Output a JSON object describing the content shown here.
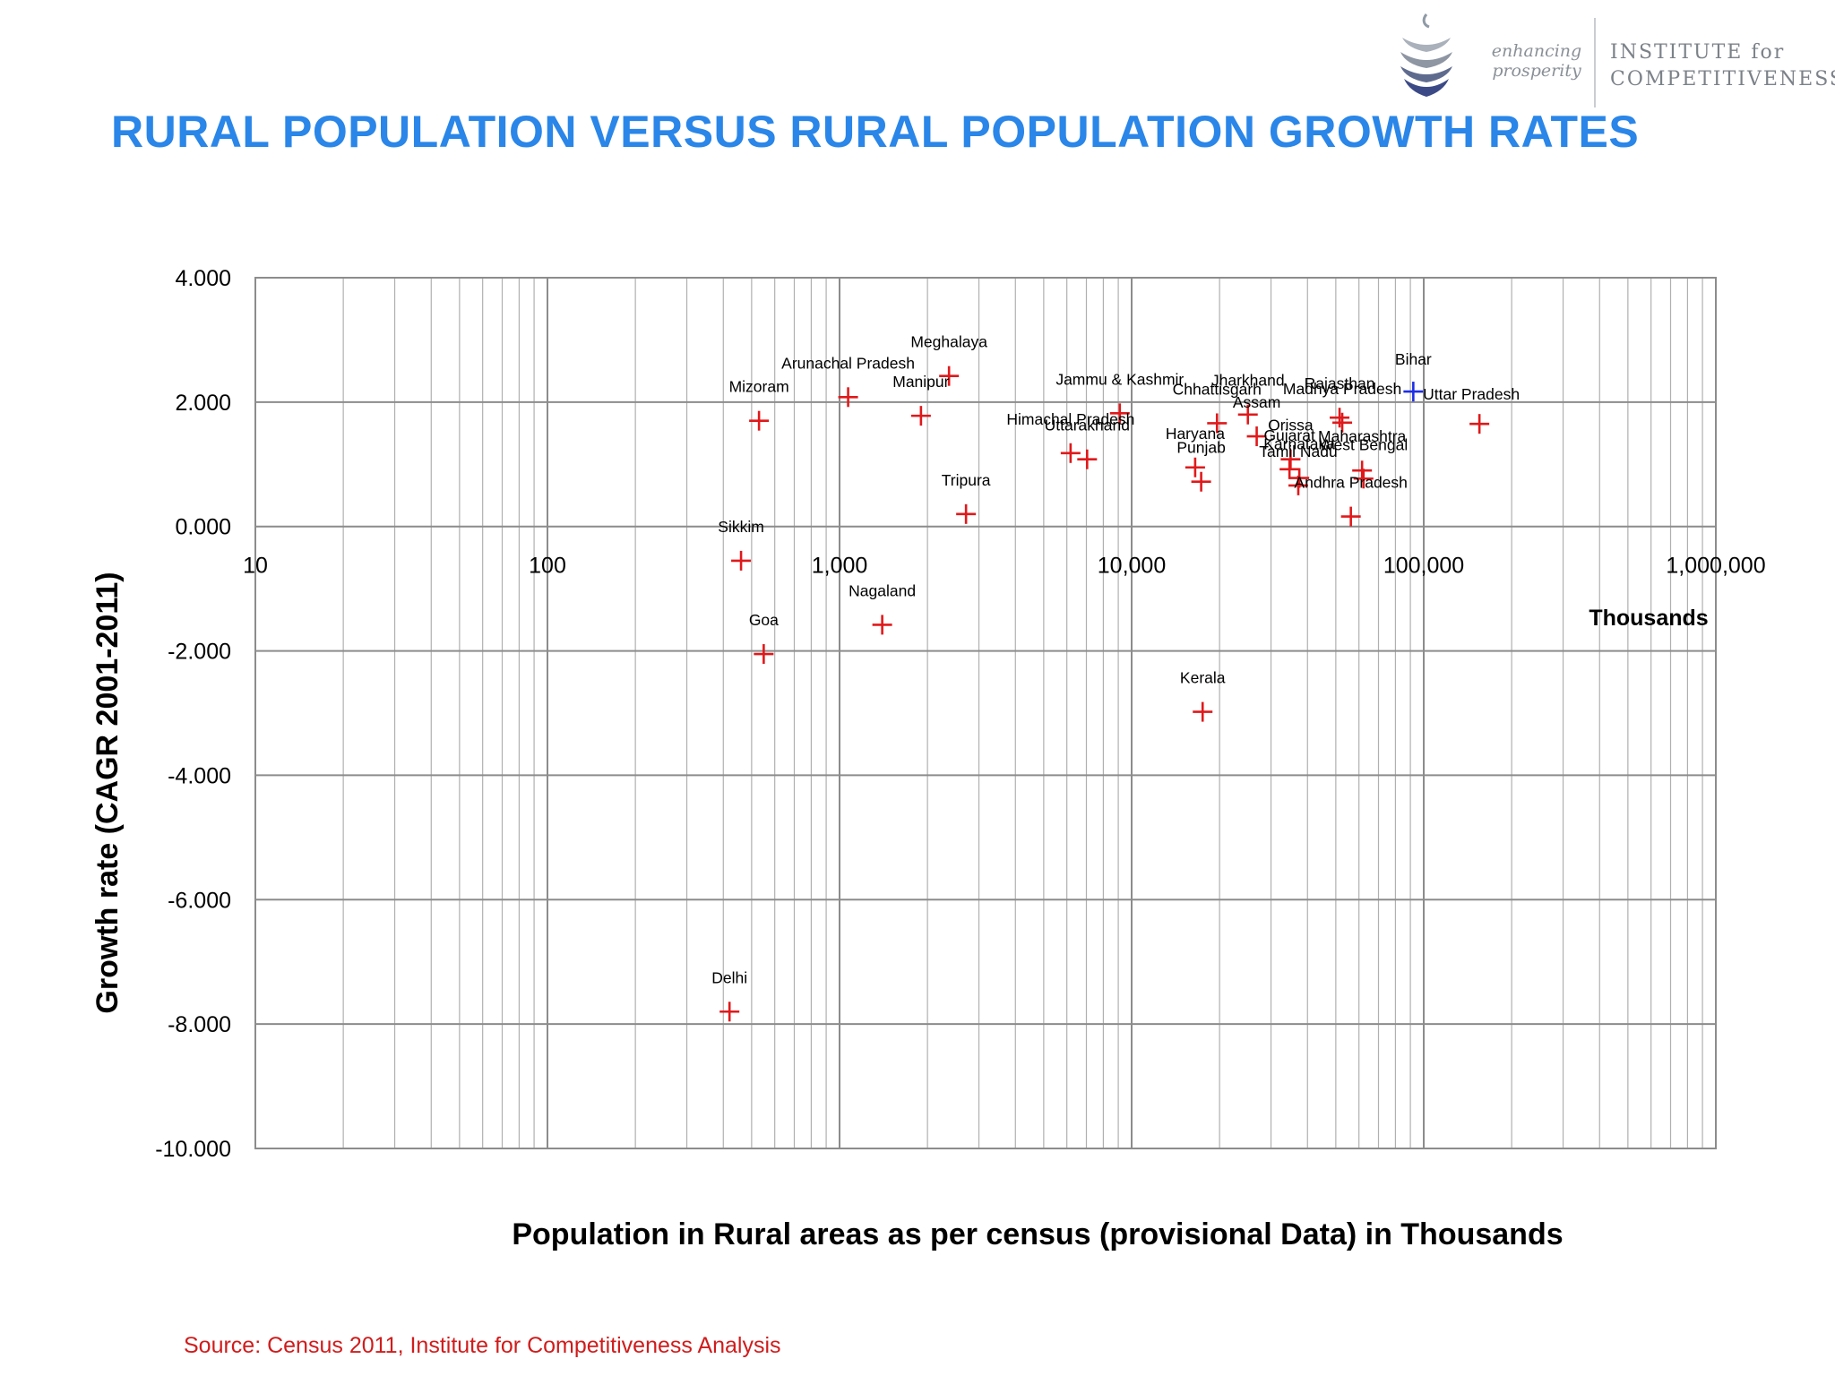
{
  "header": {
    "title": "RURAL POPULATION VERSUS RURAL POPULATION GROWTH RATES",
    "logo": {
      "icon": "stacked-leaves-logo-icon",
      "tagline_line1": "enhancing",
      "tagline_line2": "prosperity",
      "org_line1": "INSTITUTE for",
      "org_line2": "COMPETITIVENESS"
    }
  },
  "chart_data": {
    "type": "scatter",
    "title": "",
    "xlabel": "Population in Rural areas as per census (provisional Data) in Thousands",
    "ylabel": "Growth rate (CAGR 2001-2011)",
    "x_unit_label": "Thousands",
    "x_scale": "log",
    "xlim": [
      10,
      1000000
    ],
    "ylim": [
      -10,
      4
    ],
    "x_ticks": [
      10,
      100,
      1000,
      10000,
      100000,
      1000000
    ],
    "x_tick_labels": [
      "10",
      "100",
      "1,000",
      "10,000",
      "100,000",
      "1,000,000"
    ],
    "y_ticks": [
      -10,
      -8,
      -6,
      -4,
      -2,
      0,
      2,
      4
    ],
    "y_tick_labels": [
      "-10.000",
      "-8.000",
      "-6.000",
      "-4.000",
      "-2.000",
      "0.000",
      "2.000",
      "4.000"
    ],
    "grid": true,
    "marker": "plus",
    "colors": {
      "default": "#e0191b",
      "highlight": "#1d2ee6",
      "grid": "#8c8c8c"
    },
    "points": [
      {
        "label": "Delhi",
        "x": 420,
        "y": -7.8
      },
      {
        "label": "Sikkim",
        "x": 460,
        "y": -0.55
      },
      {
        "label": "Mizoram",
        "x": 530,
        "y": 1.7
      },
      {
        "label": "Goa",
        "x": 550,
        "y": -2.05
      },
      {
        "label": "Arunachal Pradesh",
        "x": 1070,
        "y": 2.08
      },
      {
        "label": "Nagaland",
        "x": 1400,
        "y": -1.58
      },
      {
        "label": "Manipur",
        "x": 1900,
        "y": 1.78
      },
      {
        "label": "Meghalaya",
        "x": 2370,
        "y": 2.42
      },
      {
        "label": "Tripura",
        "x": 2710,
        "y": 0.2
      },
      {
        "label": "Himachal Pradesh",
        "x": 6180,
        "y": 1.18
      },
      {
        "label": "Uttarakhand",
        "x": 7040,
        "y": 1.08
      },
      {
        "label": "Jammu & Kashmir",
        "x": 9110,
        "y": 1.82
      },
      {
        "label": "Haryana",
        "x": 16500,
        "y": 0.95
      },
      {
        "label": "Punjab",
        "x": 17300,
        "y": 0.72
      },
      {
        "label": "Kerala",
        "x": 17500,
        "y": -2.98
      },
      {
        "label": "Chhattisgarh",
        "x": 19600,
        "y": 1.66
      },
      {
        "label": "Jharkhand",
        "x": 25000,
        "y": 1.8
      },
      {
        "label": "Assam",
        "x": 26800,
        "y": 1.45
      },
      {
        "label": "Orissa",
        "x": 35000,
        "y": 1.08
      },
      {
        "label": "Gujarat",
        "x": 34700,
        "y": 0.92
      },
      {
        "label": "Karnataka",
        "x": 37500,
        "y": 0.78
      },
      {
        "label": "Tamil Nadu",
        "x": 37200,
        "y": 0.66
      },
      {
        "label": "Rajasthan",
        "x": 51500,
        "y": 1.75
      },
      {
        "label": "Madhya Pradesh",
        "x": 52600,
        "y": 1.67
      },
      {
        "label": "Andhra Pradesh",
        "x": 56300,
        "y": 0.16
      },
      {
        "label": "Maharashtra",
        "x": 61500,
        "y": 0.9
      },
      {
        "label": "West Bengal",
        "x": 62200,
        "y": 0.77
      },
      {
        "label": "Bihar",
        "x": 92100,
        "y": 2.17,
        "highlight": true
      },
      {
        "label": "Uttar Pradesh",
        "x": 155100,
        "y": 1.65
      }
    ]
  },
  "footer": {
    "source": "Source: Census 2011, Institute for Competitiveness Analysis"
  }
}
